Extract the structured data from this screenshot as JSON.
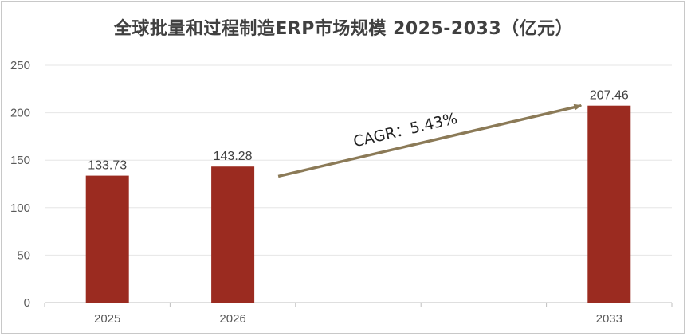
{
  "chart_data": {
    "type": "bar",
    "title": "全球批量和过程制造ERP市场规模 2025-2033（亿元）",
    "categories": [
      "2025",
      "2026",
      "",
      "",
      "2033"
    ],
    "values": [
      133.73,
      143.28,
      null,
      null,
      207.46
    ],
    "data_labels": [
      "133.73",
      "143.28",
      "",
      "",
      "207.46"
    ],
    "ylim": [
      0,
      250
    ],
    "yticks": [
      "0",
      "50",
      "100",
      "150",
      "200",
      "250"
    ],
    "xlabel": "",
    "ylabel": "",
    "grid": true,
    "bar_color": "#9b2b20",
    "annotation": {
      "text": "CAGR：5.43%",
      "arrow_color": "#8b7a57"
    }
  }
}
